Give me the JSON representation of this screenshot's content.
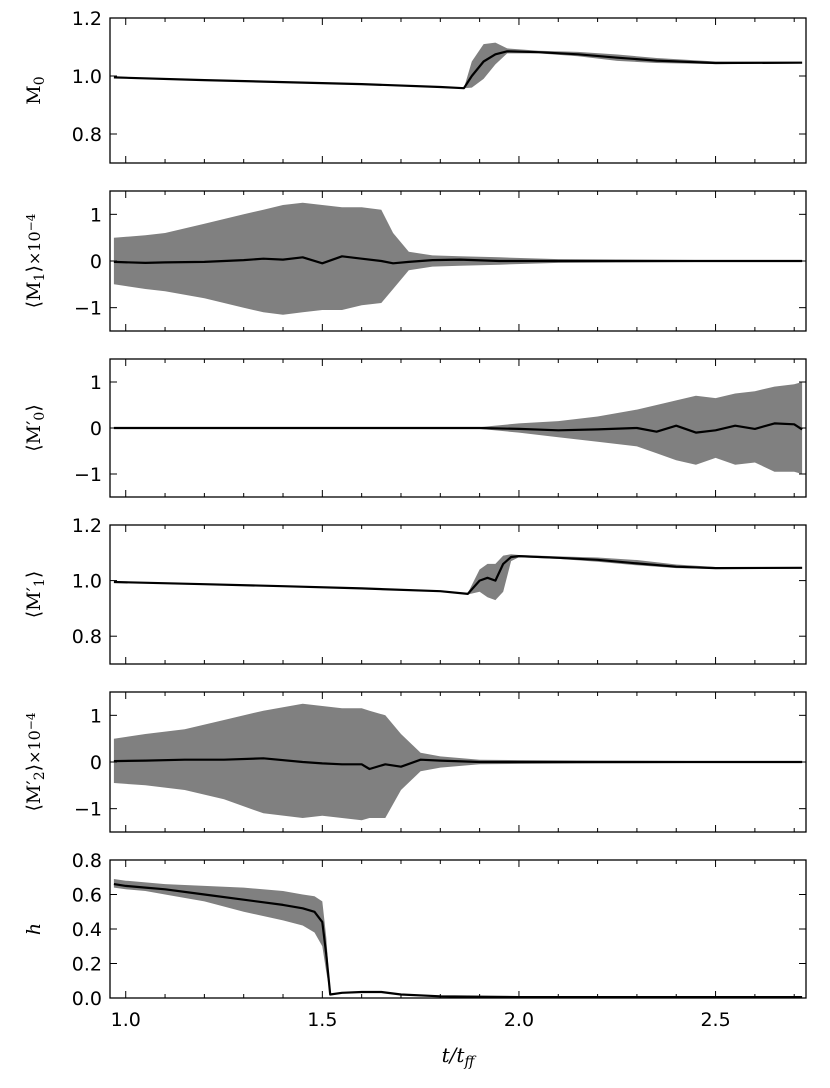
{
  "chart_data": [
    {
      "type": "line",
      "ylabel_main": "M",
      "ylabel_sub": "0",
      "ylabel_prefix": "",
      "ylabel_prime": "",
      "ylabel_suffix": "",
      "ylabel_bracket": false,
      "ylim": [
        0.7,
        1.2
      ],
      "yticks": [
        0.8,
        1.0,
        1.2
      ],
      "ytick_labels": [
        "0.8",
        "1.0",
        "1.2"
      ],
      "xlim": [
        0.96,
        2.73
      ],
      "x": [
        0.97,
        1.2,
        1.4,
        1.6,
        1.8,
        1.86,
        1.88,
        1.91,
        1.94,
        1.97,
        2.05,
        2.15,
        2.25,
        2.35,
        2.5,
        2.72
      ],
      "y": [
        0.995,
        0.986,
        0.979,
        0.972,
        0.962,
        0.958,
        1.0,
        1.05,
        1.075,
        1.085,
        1.082,
        1.075,
        1.063,
        1.053,
        1.045,
        1.046
      ],
      "y_low": [
        0.995,
        0.986,
        0.979,
        0.972,
        0.962,
        0.958,
        0.96,
        0.99,
        1.04,
        1.078,
        1.078,
        1.068,
        1.052,
        1.045,
        1.041,
        1.043
      ],
      "y_high": [
        0.995,
        0.986,
        0.979,
        0.972,
        0.962,
        0.958,
        1.05,
        1.11,
        1.115,
        1.095,
        1.087,
        1.083,
        1.074,
        1.062,
        1.05,
        1.049
      ]
    },
    {
      "type": "line",
      "ylabel_main": "M",
      "ylabel_sub": "1",
      "ylabel_prefix": "",
      "ylabel_prime": "",
      "ylabel_suffix": "×10",
      "ylabel_exp": "−4",
      "ylabel_bracket": true,
      "ylim": [
        -1.5,
        1.5
      ],
      "yticks": [
        -1,
        0,
        1
      ],
      "ytick_labels": [
        "−1",
        "0",
        "1"
      ],
      "xlim": [
        0.96,
        2.73
      ],
      "x": [
        0.97,
        1.05,
        1.1,
        1.2,
        1.3,
        1.35,
        1.4,
        1.45,
        1.5,
        1.55,
        1.6,
        1.65,
        1.68,
        1.72,
        1.78,
        1.85,
        1.95,
        2.1,
        2.3,
        2.5,
        2.72
      ],
      "y": [
        -0.02,
        -0.04,
        -0.03,
        -0.02,
        0.02,
        0.05,
        0.03,
        0.08,
        -0.05,
        0.1,
        0.05,
        0.0,
        -0.05,
        -0.02,
        0.02,
        0.03,
        0.0,
        0.0,
        0.0,
        0.0,
        0.0
      ],
      "y_low": [
        -0.5,
        -0.6,
        -0.65,
        -0.8,
        -1.0,
        -1.1,
        -1.15,
        -1.1,
        -1.05,
        -1.05,
        -0.95,
        -0.9,
        -0.6,
        -0.2,
        -0.12,
        -0.1,
        -0.08,
        -0.04,
        -0.03,
        -0.02,
        -0.02
      ],
      "y_high": [
        0.5,
        0.55,
        0.6,
        0.8,
        1.0,
        1.1,
        1.2,
        1.25,
        1.2,
        1.15,
        1.15,
        1.1,
        0.6,
        0.2,
        0.12,
        0.1,
        0.08,
        0.04,
        0.03,
        0.02,
        0.02
      ]
    },
    {
      "type": "line",
      "ylabel_main": "M",
      "ylabel_sub": "0",
      "ylabel_prefix": "",
      "ylabel_prime": "′",
      "ylabel_suffix": "",
      "ylabel_bracket": true,
      "ylim": [
        -1.5,
        1.5
      ],
      "yticks": [
        -1,
        0,
        1
      ],
      "ytick_labels": [
        "−1",
        "0",
        "1"
      ],
      "xlim": [
        0.96,
        2.73
      ],
      "x": [
        0.97,
        1.5,
        1.9,
        2.0,
        2.1,
        2.2,
        2.3,
        2.35,
        2.4,
        2.45,
        2.5,
        2.55,
        2.6,
        2.65,
        2.7,
        2.72
      ],
      "y": [
        0.0,
        0.0,
        0.0,
        -0.02,
        -0.05,
        -0.03,
        0.0,
        -0.08,
        0.05,
        -0.1,
        -0.05,
        0.05,
        -0.02,
        0.1,
        0.08,
        -0.03
      ],
      "y_low": [
        0.0,
        0.0,
        -0.02,
        -0.1,
        -0.2,
        -0.3,
        -0.4,
        -0.55,
        -0.7,
        -0.8,
        -0.65,
        -0.8,
        -0.75,
        -0.95,
        -0.95,
        -1.0
      ],
      "y_high": [
        0.0,
        0.0,
        0.02,
        0.1,
        0.15,
        0.25,
        0.4,
        0.5,
        0.6,
        0.7,
        0.65,
        0.75,
        0.8,
        0.9,
        0.95,
        1.0
      ]
    },
    {
      "type": "line",
      "ylabel_main": "M",
      "ylabel_sub": "1",
      "ylabel_prefix": "",
      "ylabel_prime": "′",
      "ylabel_suffix": "",
      "ylabel_bracket": true,
      "ylim": [
        0.7,
        1.2
      ],
      "yticks": [
        0.8,
        1.0,
        1.2
      ],
      "ytick_labels": [
        "0.8",
        "1.0",
        "1.2"
      ],
      "xlim": [
        0.96,
        2.73
      ],
      "x": [
        0.97,
        1.2,
        1.4,
        1.6,
        1.8,
        1.87,
        1.9,
        1.92,
        1.94,
        1.96,
        1.98,
        2.0,
        2.1,
        2.2,
        2.3,
        2.4,
        2.5,
        2.72
      ],
      "y": [
        0.995,
        0.987,
        0.98,
        0.972,
        0.962,
        0.952,
        1.0,
        1.01,
        1.0,
        1.06,
        1.085,
        1.088,
        1.082,
        1.075,
        1.062,
        1.05,
        1.045,
        1.046
      ],
      "y_low": [
        0.995,
        0.987,
        0.98,
        0.972,
        0.962,
        0.95,
        0.96,
        0.94,
        0.93,
        0.96,
        1.07,
        1.084,
        1.078,
        1.068,
        1.055,
        1.045,
        1.042,
        1.043
      ],
      "y_high": [
        0.995,
        0.987,
        0.98,
        0.972,
        0.962,
        0.955,
        1.04,
        1.06,
        1.06,
        1.09,
        1.095,
        1.092,
        1.087,
        1.083,
        1.074,
        1.058,
        1.049,
        1.049
      ]
    },
    {
      "type": "line",
      "ylabel_main": "M",
      "ylabel_sub": "2",
      "ylabel_prefix": "",
      "ylabel_prime": "′",
      "ylabel_suffix": "×10",
      "ylabel_exp": "−4",
      "ylabel_bracket": true,
      "ylim": [
        -1.5,
        1.5
      ],
      "yticks": [
        -1,
        0,
        1
      ],
      "ytick_labels": [
        "−1",
        "0",
        "1"
      ],
      "xlim": [
        0.96,
        2.73
      ],
      "x": [
        0.97,
        1.05,
        1.15,
        1.25,
        1.35,
        1.45,
        1.5,
        1.55,
        1.6,
        1.62,
        1.66,
        1.7,
        1.75,
        1.8,
        1.9,
        2.0,
        2.2,
        2.5,
        2.72
      ],
      "y": [
        0.02,
        0.03,
        0.05,
        0.05,
        0.08,
        0.0,
        -0.03,
        -0.05,
        -0.05,
        -0.15,
        -0.05,
        -0.1,
        0.05,
        0.03,
        0.0,
        0.0,
        0.0,
        0.0,
        0.0
      ],
      "y_low": [
        -0.45,
        -0.5,
        -0.6,
        -0.8,
        -1.1,
        -1.2,
        -1.15,
        -1.2,
        -1.25,
        -1.2,
        -1.2,
        -0.6,
        -0.2,
        -0.12,
        -0.05,
        -0.04,
        -0.03,
        -0.02,
        -0.02
      ],
      "y_high": [
        0.5,
        0.6,
        0.7,
        0.9,
        1.1,
        1.25,
        1.2,
        1.15,
        1.15,
        1.1,
        1.0,
        0.6,
        0.2,
        0.12,
        0.05,
        0.04,
        0.03,
        0.02,
        0.02
      ]
    },
    {
      "type": "line",
      "ylabel_main": "h",
      "ylabel_sub": "",
      "ylabel_prefix": "",
      "ylabel_prime": "",
      "ylabel_suffix": "",
      "ylabel_bracket": false,
      "ylabel_italic": true,
      "ylim": [
        0.0,
        0.8
      ],
      "yticks": [
        0.0,
        0.2,
        0.4,
        0.6,
        0.8
      ],
      "ytick_labels": [
        "0.0",
        "0.2",
        "0.4",
        "0.6",
        "0.8"
      ],
      "xlim": [
        0.96,
        2.73
      ],
      "x": [
        0.97,
        1.0,
        1.05,
        1.1,
        1.2,
        1.3,
        1.4,
        1.45,
        1.48,
        1.5,
        1.51,
        1.52,
        1.55,
        1.6,
        1.65,
        1.7,
        1.8,
        2.0,
        2.5,
        2.72
      ],
      "y": [
        0.66,
        0.65,
        0.64,
        0.63,
        0.6,
        0.57,
        0.54,
        0.52,
        0.5,
        0.44,
        0.25,
        0.02,
        0.03,
        0.035,
        0.035,
        0.02,
        0.01,
        0.005,
        0.005,
        0.005
      ],
      "y_low": [
        0.64,
        0.63,
        0.62,
        0.6,
        0.56,
        0.5,
        0.45,
        0.42,
        0.38,
        0.3,
        0.15,
        0.02,
        0.03,
        0.035,
        0.035,
        0.02,
        0.01,
        0.005,
        0.005,
        0.005
      ],
      "y_high": [
        0.69,
        0.68,
        0.67,
        0.66,
        0.65,
        0.64,
        0.62,
        0.6,
        0.59,
        0.56,
        0.35,
        0.02,
        0.03,
        0.035,
        0.035,
        0.02,
        0.01,
        0.005,
        0.005,
        0.005
      ]
    }
  ],
  "x_axis": {
    "ticks": [
      1.0,
      1.5,
      2.0,
      2.5
    ],
    "tick_labels": [
      "1.0",
      "1.5",
      "2.0",
      "2.5"
    ],
    "label_main": "t/t",
    "label_sub": "ff"
  },
  "colors": {
    "band": "#808080",
    "line": "#000000"
  }
}
